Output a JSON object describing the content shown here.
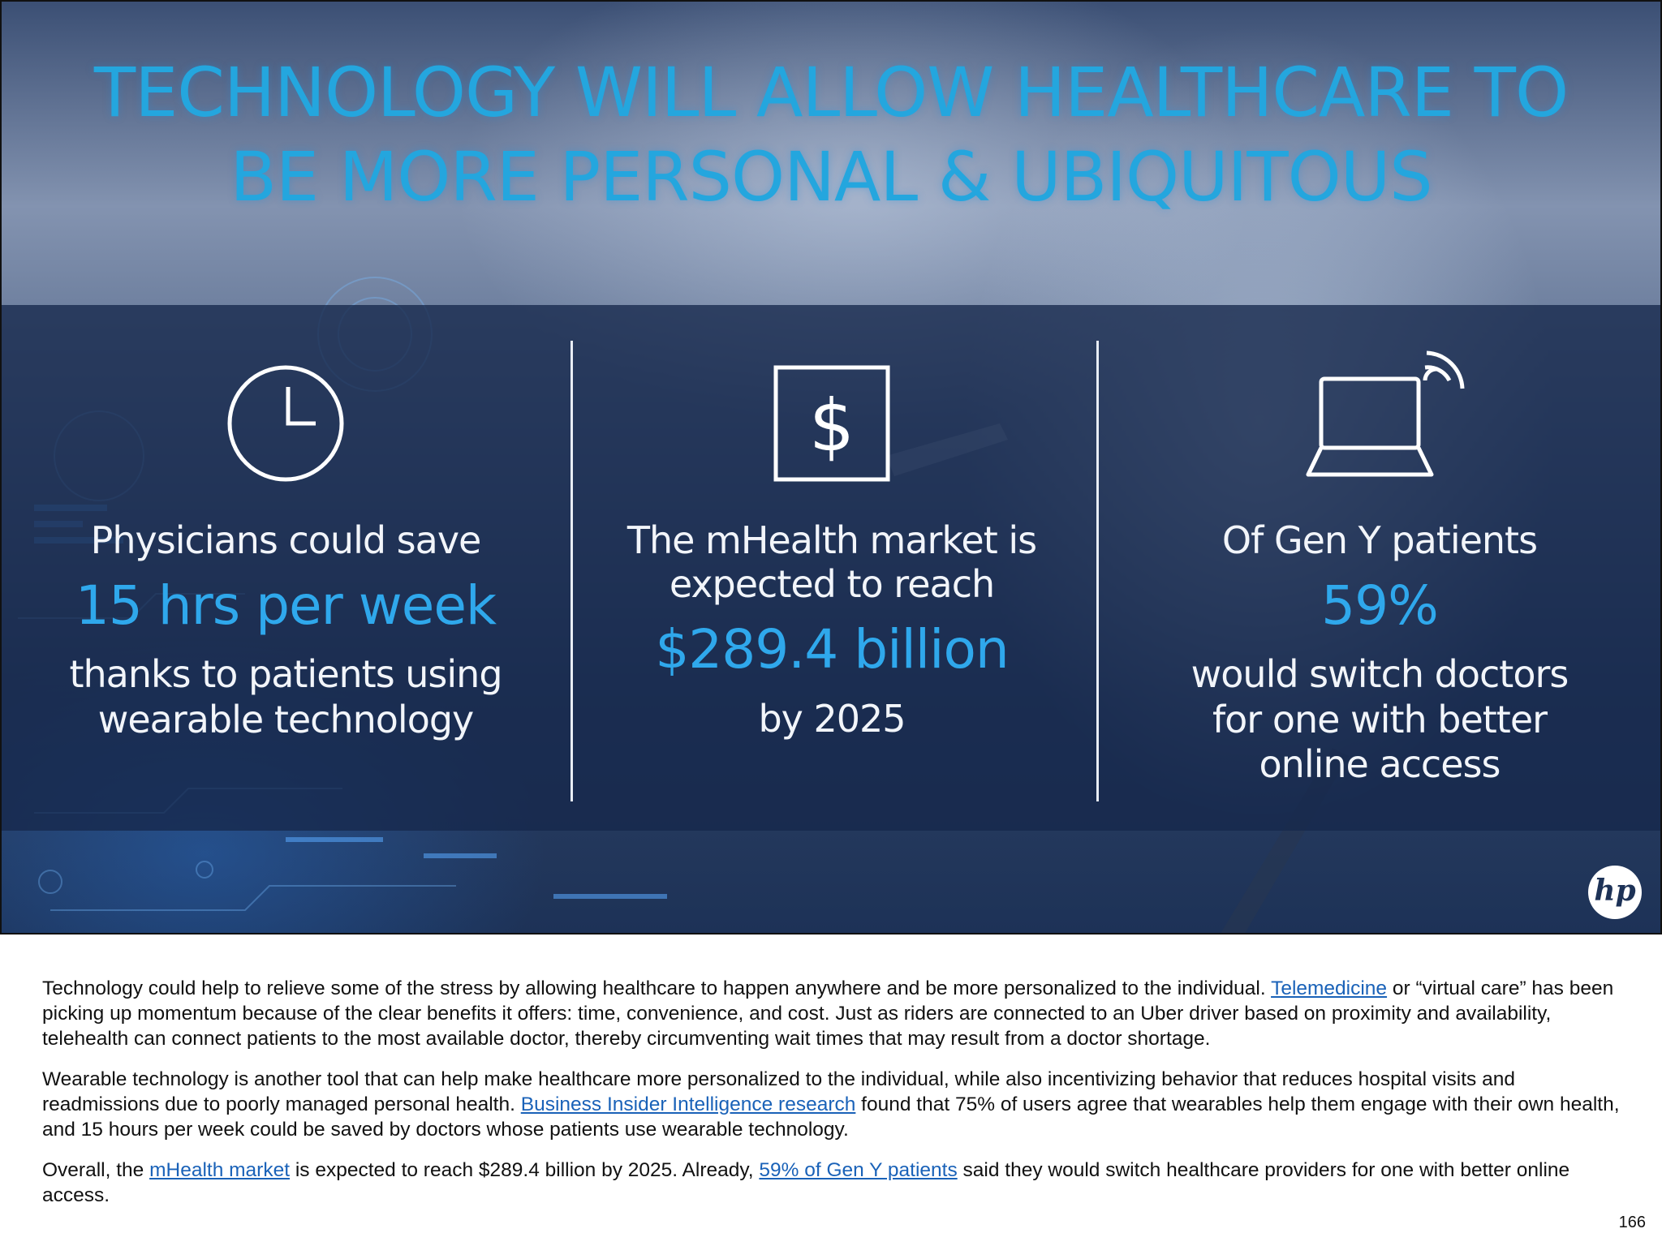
{
  "hero": {
    "title_line1": "TECHNOLOGY WILL ALLOW HEALTHCARE TO",
    "title_line2": "BE MORE PERSONAL & UBIQUITOUS",
    "colors": {
      "title": "#24a6de",
      "highlight": "#2fa8ec",
      "band": "#16284b"
    },
    "stats": [
      {
        "icon": "clock-icon",
        "lines": [
          "Physicians could save",
          "15 hrs per week",
          "thanks to patients using",
          "wearable technology"
        ]
      },
      {
        "icon": "dollar-icon",
        "lines": [
          "The mHealth market is",
          "expected to reach",
          "$289.4 billion",
          "by 2025"
        ]
      },
      {
        "icon": "laptop-wifi-icon",
        "lines": [
          "Of Gen Y patients",
          "59%",
          "would switch doctors",
          "for one with better",
          "online access"
        ]
      }
    ],
    "logo": "hp"
  },
  "article": {
    "p1_before": "Technology could help to relieve some of the stress by allowing healthcare to happen anywhere and be more personalized to the individual. ",
    "p1_link": "Telemedicine",
    "p1_after": " or “virtual care” has been picking up momentum because of the clear benefits it offers: time, convenience, and cost. Just as riders are connected to an Uber driver based on proximity and availability, telehealth can connect patients to the most available doctor, thereby circumventing wait times that may result from a doctor shortage.",
    "p2_before": "Wearable technology is another tool that can help make healthcare more personalized to the individual, while also incentivizing behavior that reduces hospital visits and readmissions due to poorly managed personal health. ",
    "p2_link": "Business Insider Intelligence research",
    "p2_after": " found that 75% of users agree that wearables help them engage with their own health, and 15 hours per week could be saved by doctors whose patients use wearable technology.",
    "p3_before": "Overall, the ",
    "p3_link1": "mHealth market",
    "p3_mid": " is expected to reach $289.4 billion by 2025. Already, ",
    "p3_link2": "59% of Gen Y patients",
    "p3_after": " said they would switch healthcare providers for one with better online access."
  },
  "page_number": "166"
}
